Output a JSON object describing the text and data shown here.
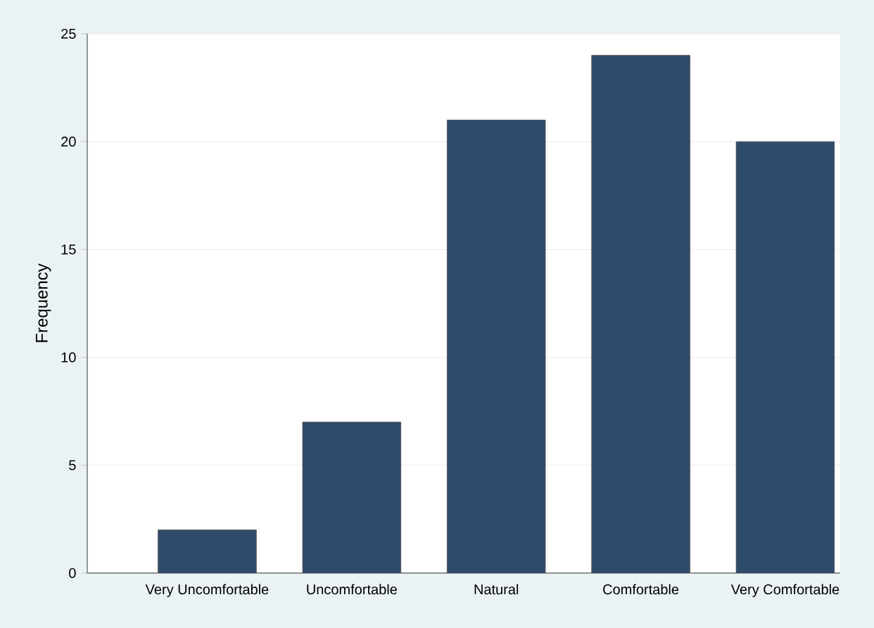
{
  "chart_data": {
    "type": "bar",
    "ylabel": "Frequency",
    "categories": [
      "Very Uncomfortable",
      "Uncomfortable",
      "Natural",
      "Comfortable",
      "Very Comfortable"
    ],
    "values": [
      2,
      7,
      21,
      24,
      20
    ],
    "color": "#2f4b6c",
    "ylim": [
      0,
      25
    ],
    "yticks": [
      0,
      5,
      10,
      15,
      20,
      25
    ],
    "grid": "y"
  }
}
